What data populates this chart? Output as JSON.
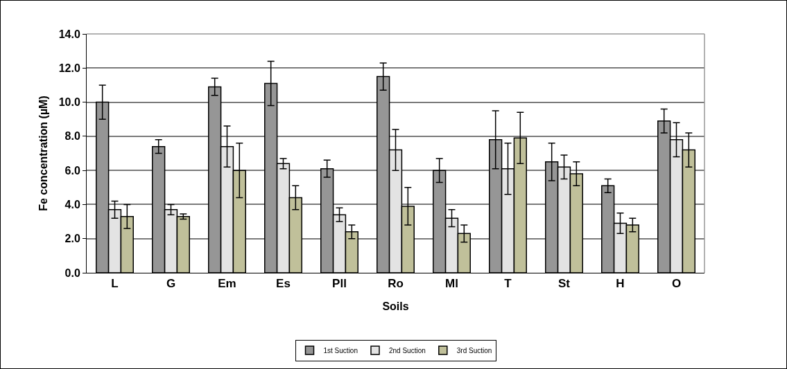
{
  "chart_data": {
    "type": "bar",
    "xlabel": "Soils",
    "ylabel": "Fe concentration (µM)",
    "categories": [
      "L",
      "G",
      "Em",
      "Es",
      "Pll",
      "Ro",
      "Ml",
      "T",
      "St",
      "H",
      "O"
    ],
    "series": [
      {
        "name": "1st Suction",
        "color": "#969696",
        "values": [
          10.0,
          7.4,
          10.9,
          11.1,
          6.1,
          11.5,
          6.0,
          7.8,
          6.5,
          5.1,
          8.9
        ],
        "errors": [
          1.0,
          0.4,
          0.5,
          1.3,
          0.5,
          0.8,
          0.7,
          1.7,
          1.1,
          0.4,
          0.7
        ]
      },
      {
        "name": "2nd Suction",
        "color": "#e3e3e3",
        "values": [
          3.7,
          3.7,
          7.4,
          6.4,
          3.4,
          7.2,
          3.2,
          6.1,
          6.2,
          2.9,
          7.8
        ],
        "errors": [
          0.5,
          0.3,
          1.2,
          0.3,
          0.4,
          1.2,
          0.5,
          1.5,
          0.7,
          0.6,
          1.0
        ]
      },
      {
        "name": "3rd Suction",
        "color": "#c0c09a",
        "values": [
          3.3,
          3.3,
          6.0,
          4.4,
          2.4,
          3.9,
          2.3,
          7.9,
          5.8,
          2.8,
          7.2
        ],
        "errors": [
          0.7,
          0.15,
          1.6,
          0.7,
          0.4,
          1.1,
          0.5,
          1.5,
          0.7,
          0.4,
          1.0
        ]
      }
    ],
    "ylim": [
      0,
      14
    ],
    "yticks": [
      {
        "value": 0,
        "label": "0.0"
      },
      {
        "value": 2,
        "label": "2.0"
      },
      {
        "value": 4,
        "label": "4.0"
      },
      {
        "value": 6,
        "label": "6.0"
      },
      {
        "value": 8,
        "label": "8.0"
      },
      {
        "value": 10,
        "label": "10.0"
      },
      {
        "value": 12,
        "label": "12.0"
      },
      {
        "value": 14,
        "label": "14.0"
      }
    ],
    "grid": "y",
    "legend": "bottom"
  }
}
